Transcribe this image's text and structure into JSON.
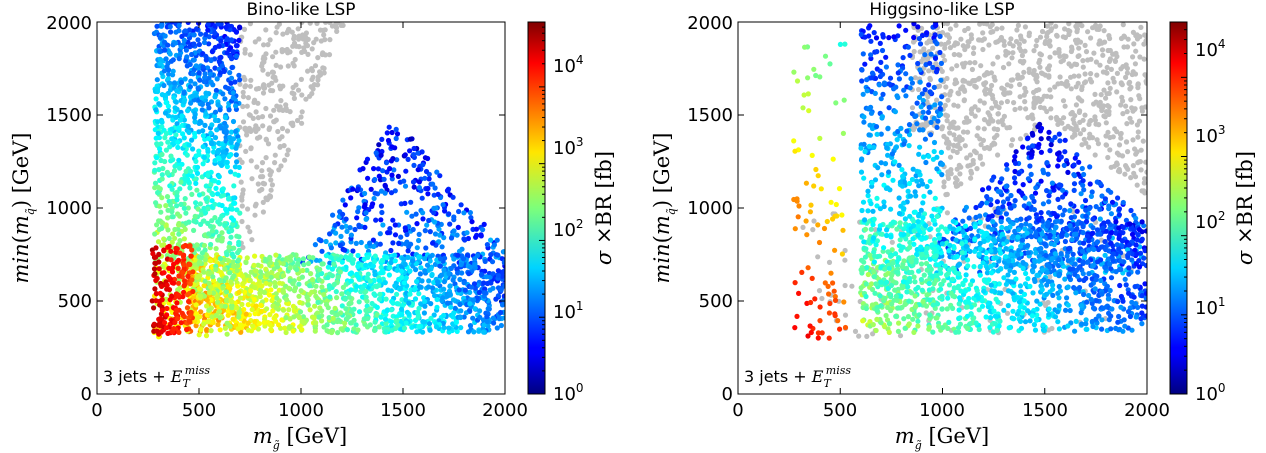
{
  "chart_data": [
    {
      "type": "scatter",
      "title": "Bino-like LSP",
      "xlabel": "m_g̃ [GeV]",
      "ylabel": "min(m_q̃) [GeV]",
      "xlim": [
        0,
        2000
      ],
      "ylim": [
        0,
        2000
      ],
      "xticks": [
        "0",
        "500",
        "1000",
        "1500",
        "2000"
      ],
      "yticks": [
        "0",
        "500",
        "1000",
        "1500",
        "2000"
      ],
      "annotation": "3 jets + E_T^miss",
      "colorbar": {
        "label": "σ ×BR [fb]",
        "scale": "log",
        "range": [
          1,
          70000
        ],
        "ticks": [
          "10^0",
          "10^1",
          "10^2",
          "10^3",
          "10^4"
        ]
      },
      "colors": {
        "excluded": "#bebebe"
      },
      "clusters": [
        {
          "desc": "excluded grey",
          "x": [
            750,
            2000
          ],
          "y": [
            700,
            2000
          ],
          "logsigma": null
        },
        {
          "desc": "low-mass red band",
          "x": [
            270,
            460
          ],
          "y": [
            330,
            800
          ],
          "logsigma": [
            3.9,
            4.6
          ]
        },
        {
          "desc": "left vertical band",
          "x": [
            280,
            700
          ],
          "y": [
            300,
            2000
          ],
          "logsigma": [
            1.0,
            3.2
          ]
        },
        {
          "desc": "horizontal band",
          "x": [
            450,
            2000
          ],
          "y": [
            330,
            750
          ],
          "logsigma": [
            1.0,
            3.3
          ]
        },
        {
          "desc": "upper blue triangle",
          "x": [
            1000,
            2000
          ],
          "y": [
            700,
            1500
          ],
          "logsigma": [
            0.0,
            1.0
          ]
        }
      ]
    },
    {
      "type": "scatter",
      "title": "Higgsino-like LSP",
      "xlabel": "m_g̃ [GeV]",
      "ylabel": "min(m_q̃) [GeV]",
      "xlim": [
        0,
        2000
      ],
      "ylim": [
        0,
        2000
      ],
      "xticks": [
        "0",
        "500",
        "1000",
        "1500",
        "2000"
      ],
      "yticks": [
        "0",
        "500",
        "1000",
        "1500",
        "2000"
      ],
      "annotation": "3 jets + E_T^miss",
      "colorbar": {
        "label": "σ ×BR [fb]",
        "scale": "log",
        "range": [
          1,
          50000
        ],
        "ticks": [
          "10^0",
          "10^1",
          "10^2",
          "10^3",
          "10^4"
        ]
      },
      "colors": {
        "excluded": "#bebebe"
      },
      "clusters": [
        {
          "desc": "excluded grey",
          "x": [
            850,
            2000
          ],
          "y": [
            900,
            2000
          ],
          "logsigma": null
        },
        {
          "desc": "sparse low-mass points",
          "x": [
            270,
            520
          ],
          "y": [
            300,
            1900
          ],
          "logsigma": [
            2.5,
            4.5
          ]
        },
        {
          "desc": "vertical band",
          "x": [
            600,
            1000
          ],
          "y": [
            400,
            2000
          ],
          "logsigma": [
            0.7,
            2.4
          ]
        },
        {
          "desc": "horizontal band",
          "x": [
            600,
            2000
          ],
          "y": [
            330,
            900
          ],
          "logsigma": [
            0.8,
            2.6
          ]
        },
        {
          "desc": "upper blue triangle",
          "x": [
            1000,
            2000
          ],
          "y": [
            700,
            1500
          ],
          "logsigma": [
            0.0,
            1.0
          ]
        }
      ]
    }
  ]
}
